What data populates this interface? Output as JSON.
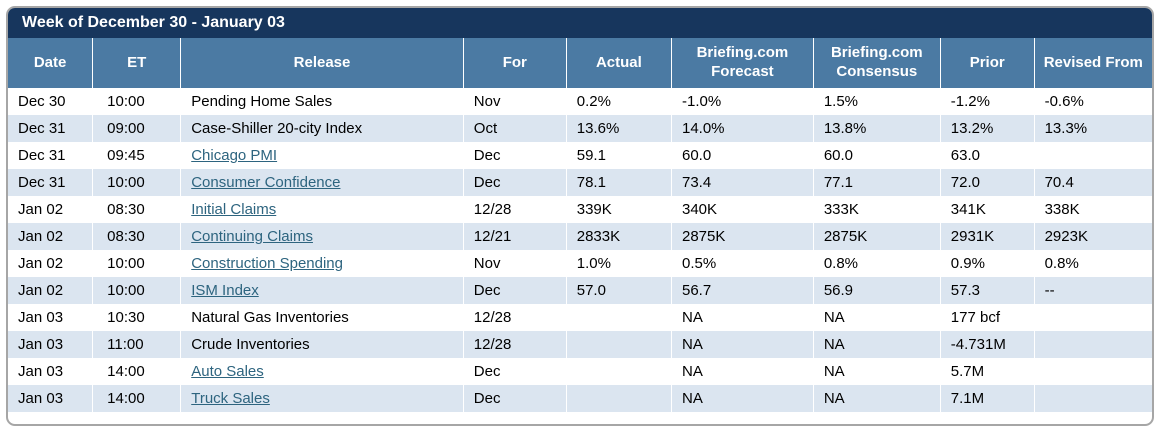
{
  "title": "Week of December 30 - January 03",
  "colors": {
    "title_bar": "#17365d",
    "header_bg": "#4b7aa3",
    "row_alt": "#dbe5f0",
    "link": "#2d647f"
  },
  "table": {
    "columns": [
      "Date",
      "ET",
      "Release",
      "For",
      "Actual",
      "Briefing.com Forecast",
      "Briefing.com Consensus",
      "Prior",
      "Revised From"
    ],
    "rows": [
      {
        "date": "Dec 30",
        "et": "10:00",
        "release": "Pending Home Sales",
        "link": false,
        "for": "Nov",
        "actual": "0.2%",
        "forecast": "-1.0%",
        "consensus": "1.5%",
        "prior": "-1.2%",
        "revised": "-0.6%"
      },
      {
        "date": "Dec 31",
        "et": "09:00",
        "release": "Case-Shiller 20-city Index",
        "link": false,
        "for": "Oct",
        "actual": "13.6%",
        "forecast": "14.0%",
        "consensus": "13.8%",
        "prior": "13.2%",
        "revised": "13.3%"
      },
      {
        "date": "Dec 31",
        "et": "09:45",
        "release": "Chicago PMI",
        "link": true,
        "for": "Dec",
        "actual": "59.1",
        "forecast": "60.0",
        "consensus": "60.0",
        "prior": "63.0",
        "revised": ""
      },
      {
        "date": "Dec 31",
        "et": "10:00",
        "release": "Consumer Confidence",
        "link": true,
        "for": "Dec",
        "actual": "78.1",
        "forecast": "73.4",
        "consensus": "77.1",
        "prior": "72.0",
        "revised": "70.4"
      },
      {
        "date": "Jan 02",
        "et": "08:30",
        "release": "Initial Claims",
        "link": true,
        "for": "12/28",
        "actual": "339K",
        "forecast": "340K",
        "consensus": "333K",
        "prior": "341K",
        "revised": "338K"
      },
      {
        "date": "Jan 02",
        "et": "08:30",
        "release": "Continuing Claims",
        "link": true,
        "for": "12/21",
        "actual": "2833K",
        "forecast": "2875K",
        "consensus": "2875K",
        "prior": "2931K",
        "revised": "2923K"
      },
      {
        "date": "Jan 02",
        "et": "10:00",
        "release": "Construction Spending",
        "link": true,
        "for": "Nov",
        "actual": "1.0%",
        "forecast": "0.5%",
        "consensus": "0.8%",
        "prior": "0.9%",
        "revised": "0.8%"
      },
      {
        "date": "Jan 02",
        "et": "10:00",
        "release": "ISM Index",
        "link": true,
        "for": "Dec",
        "actual": "57.0",
        "forecast": "56.7",
        "consensus": "56.9",
        "prior": "57.3",
        "revised": "--"
      },
      {
        "date": "Jan 03",
        "et": "10:30",
        "release": "Natural Gas Inventories",
        "link": false,
        "for": "12/28",
        "actual": "",
        "forecast": "NA",
        "consensus": "NA",
        "prior": "177 bcf",
        "revised": ""
      },
      {
        "date": "Jan 03",
        "et": "11:00",
        "release": "Crude Inventories",
        "link": false,
        "for": "12/28",
        "actual": "",
        "forecast": "NA",
        "consensus": "NA",
        "prior": "-4.731M",
        "revised": ""
      },
      {
        "date": "Jan 03",
        "et": "14:00",
        "release": "Auto Sales",
        "link": true,
        "for": "Dec",
        "actual": "",
        "forecast": "NA",
        "consensus": "NA",
        "prior": "5.7M",
        "revised": ""
      },
      {
        "date": "Jan 03",
        "et": "14:00",
        "release": "Truck Sales",
        "link": true,
        "for": "Dec",
        "actual": "",
        "forecast": "NA",
        "consensus": "NA",
        "prior": "7.1M",
        "revised": ""
      }
    ]
  }
}
